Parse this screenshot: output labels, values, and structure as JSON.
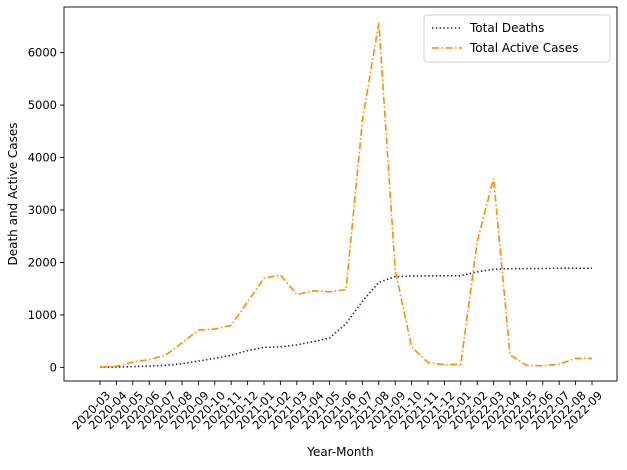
{
  "chart_data": {
    "type": "line",
    "xlabel": "Year-Month",
    "ylabel": "Death and Active Cases",
    "ylim": [
      -260,
      6870
    ],
    "yticks": [
      0,
      1000,
      2000,
      3000,
      4000,
      5000,
      6000
    ],
    "legend_position": "top-right",
    "grid": false,
    "categories": [
      "2020-03",
      "2020-04",
      "2020-05",
      "2020-06",
      "2020-07",
      "2020-08",
      "2020-09",
      "2020-10",
      "2020-11",
      "2020-12",
      "2021-01",
      "2021-02",
      "2021-03",
      "2021-04",
      "2021-05",
      "2021-06",
      "2021-07",
      "2021-08",
      "2021-09",
      "2021-10",
      "2021-11",
      "2021-12",
      "2022-01",
      "2022-02",
      "2022-03",
      "2022-04",
      "2022-05",
      "2022-06",
      "2022-07",
      "2022-08",
      "2022-09"
    ],
    "series": [
      {
        "name": "Total Deaths",
        "color": "#2a1a5e",
        "style": "dotted",
        "values": [
          2,
          5,
          15,
          25,
          40,
          70,
          120,
          170,
          230,
          320,
          380,
          390,
          430,
          490,
          560,
          830,
          1260,
          1620,
          1730,
          1740,
          1745,
          1745,
          1748,
          1820,
          1870,
          1880,
          1882,
          1885,
          1888,
          1890,
          1890
        ]
      },
      {
        "name": "Total Active Cases",
        "color": "#ff8c00",
        "style": "dashdot",
        "values": [
          5,
          20,
          100,
          150,
          230,
          470,
          710,
          730,
          800,
          1250,
          1700,
          1760,
          1390,
          1460,
          1440,
          1480,
          4700,
          6570,
          1850,
          390,
          90,
          50,
          60,
          2400,
          3600,
          240,
          40,
          30,
          60,
          170,
          170
        ]
      }
    ]
  }
}
